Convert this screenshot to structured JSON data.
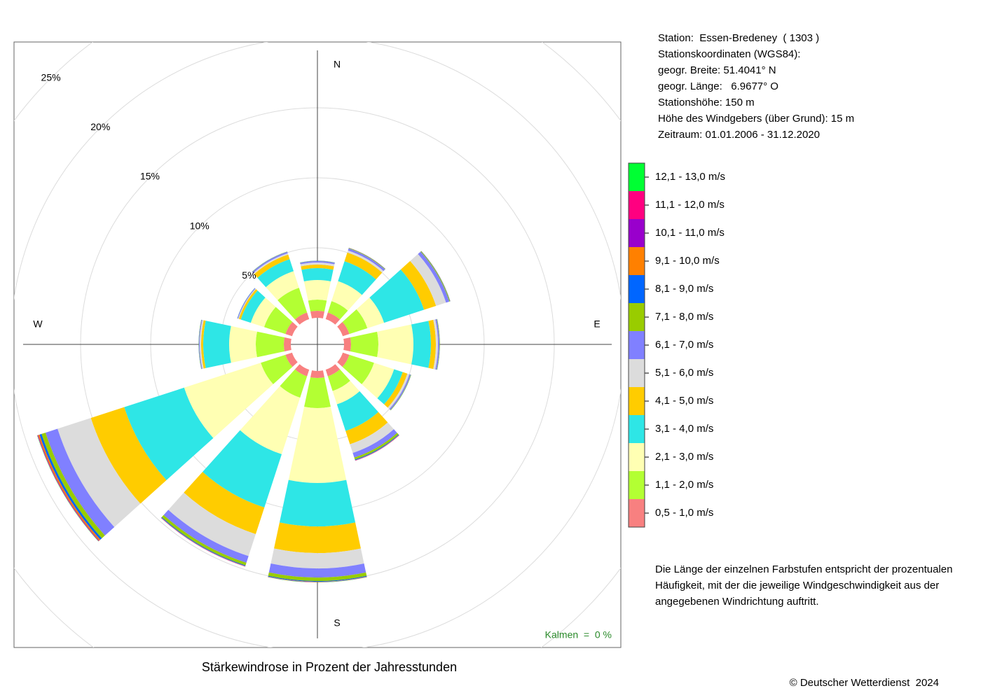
{
  "chart_data": {
    "type": "windrose",
    "title": "Stärkewindrose in Prozent der Jahresstunden",
    "calm_label": "Kalmen  =  0 %",
    "directions": [
      "N",
      null,
      null,
      "E",
      null,
      null,
      "S",
      null,
      null,
      "W",
      null,
      null
    ],
    "rticks": [
      {
        "value": 5,
        "label": "5%"
      },
      {
        "value": 10,
        "label": "10%"
      },
      {
        "value": 15,
        "label": "15%"
      },
      {
        "value": 20,
        "label": "20%"
      },
      {
        "value": 25,
        "label": "25%"
      }
    ],
    "series": [
      {
        "name": "0,5 - 1,0 m/s",
        "color": "#f88080",
        "values": [
          0.5,
          0.5,
          0.5,
          0.5,
          0.5,
          0.5,
          0.5,
          0.5,
          0.5,
          0.5,
          0.5,
          0.5
        ]
      },
      {
        "name": "1,1 - 2,0 m/s",
        "color": "#b3ff33",
        "values": [
          0.8,
          0.85,
          1.35,
          1.95,
          1.85,
          1.1,
          2.15,
          1.6,
          1.85,
          2,
          1.6,
          1.85
        ]
      },
      {
        "name": "2,1 - 3,0 m/s",
        "color": "#ffffb3",
        "values": [
          1.4,
          1.5,
          1.25,
          2.5,
          1.5,
          1,
          5.35,
          4.25,
          5.75,
          1.9,
          1,
          1.25
        ]
      },
      {
        "name": "3,1 - 4,0 m/s",
        "color": "#2ee6e6",
        "values": [
          0.85,
          1.5,
          3,
          1.25,
          0.65,
          2,
          3.1,
          4,
          4.5,
          1.85,
          0.75,
          0.9
        ]
      },
      {
        "name": "4,1 - 5,0 m/s",
        "color": "#ffcc00",
        "values": [
          0.25,
          0.65,
          0.9,
          0.35,
          0.35,
          1,
          1.9,
          2,
          2.5,
          0.15,
          0.15,
          0.35
        ]
      },
      {
        "name": "5,1 - 6,0 m/s",
        "color": "#dcdcdc",
        "values": [
          0.15,
          0.15,
          0.75,
          0.15,
          0.15,
          0.65,
          1.1,
          1.65,
          2.5,
          0.1,
          0.05,
          0.1
        ]
      },
      {
        "name": "6,1 - 7,0 m/s",
        "color": "#8080ff",
        "values": [
          0.1,
          0.15,
          0.25,
          0.1,
          0.1,
          0.35,
          0.65,
          0.5,
          0.9,
          0.05,
          0.05,
          0.1
        ]
      },
      {
        "name": "7,1 - 8,0 m/s",
        "color": "#99cc00",
        "values": [
          0.02,
          0.03,
          0.05,
          0.03,
          0.03,
          0.15,
          0.25,
          0.2,
          0.3,
          0.02,
          0.01,
          0.02
        ]
      },
      {
        "name": "8,1 - 9,0 m/s",
        "color": "#0066ff",
        "values": [
          0.01,
          0.02,
          0.02,
          0.01,
          0.01,
          0.05,
          0.05,
          0.05,
          0.15,
          0.01,
          0.01,
          0.01
        ]
      },
      {
        "name": "9,1 - 10,0 m/s",
        "color": "#ff8000",
        "values": [
          0,
          0.01,
          0.01,
          0,
          0,
          0.02,
          0.02,
          0.02,
          0.1,
          0,
          0,
          0
        ]
      },
      {
        "name": "10,1 - 11,0 m/s",
        "color": "#9900cc",
        "values": [
          0,
          0,
          0,
          0,
          0,
          0.01,
          0.01,
          0.01,
          0.03,
          0,
          0,
          0
        ]
      },
      {
        "name": "11,1 - 12,0 m/s",
        "color": "#ff0080",
        "values": [
          0,
          0,
          0,
          0,
          0,
          0.01,
          0.01,
          0.01,
          0.03,
          0,
          0,
          0
        ]
      },
      {
        "name": "12,1 - 13,0 m/s",
        "color": "#00ff33",
        "values": [
          0,
          0,
          0,
          0,
          0,
          0,
          0.01,
          0,
          0.02,
          0,
          0,
          0
        ]
      }
    ]
  },
  "info": [
    "Station:  Essen-Bredeney  ( 1303 )",
    "Stationskoordinaten (WGS84):",
    "geogr. Breite: 51.4041° N",
    "geogr. Länge:   6.9677° O",
    "Stationshöhe: 150 m",
    "Höhe des Windgebers (über Grund): 15 m",
    "Zeitraum: 01.01.2006 - 31.12.2020"
  ],
  "note": [
    "Die Länge der einzelnen Farbstufen entspricht der prozentualen",
    "Häufigkeit, mit der die jeweilige Windgeschwindigkeit aus der",
    "angegebenen Windrichtung auftritt."
  ],
  "footer": "© Deutscher Wetterdienst  2024"
}
